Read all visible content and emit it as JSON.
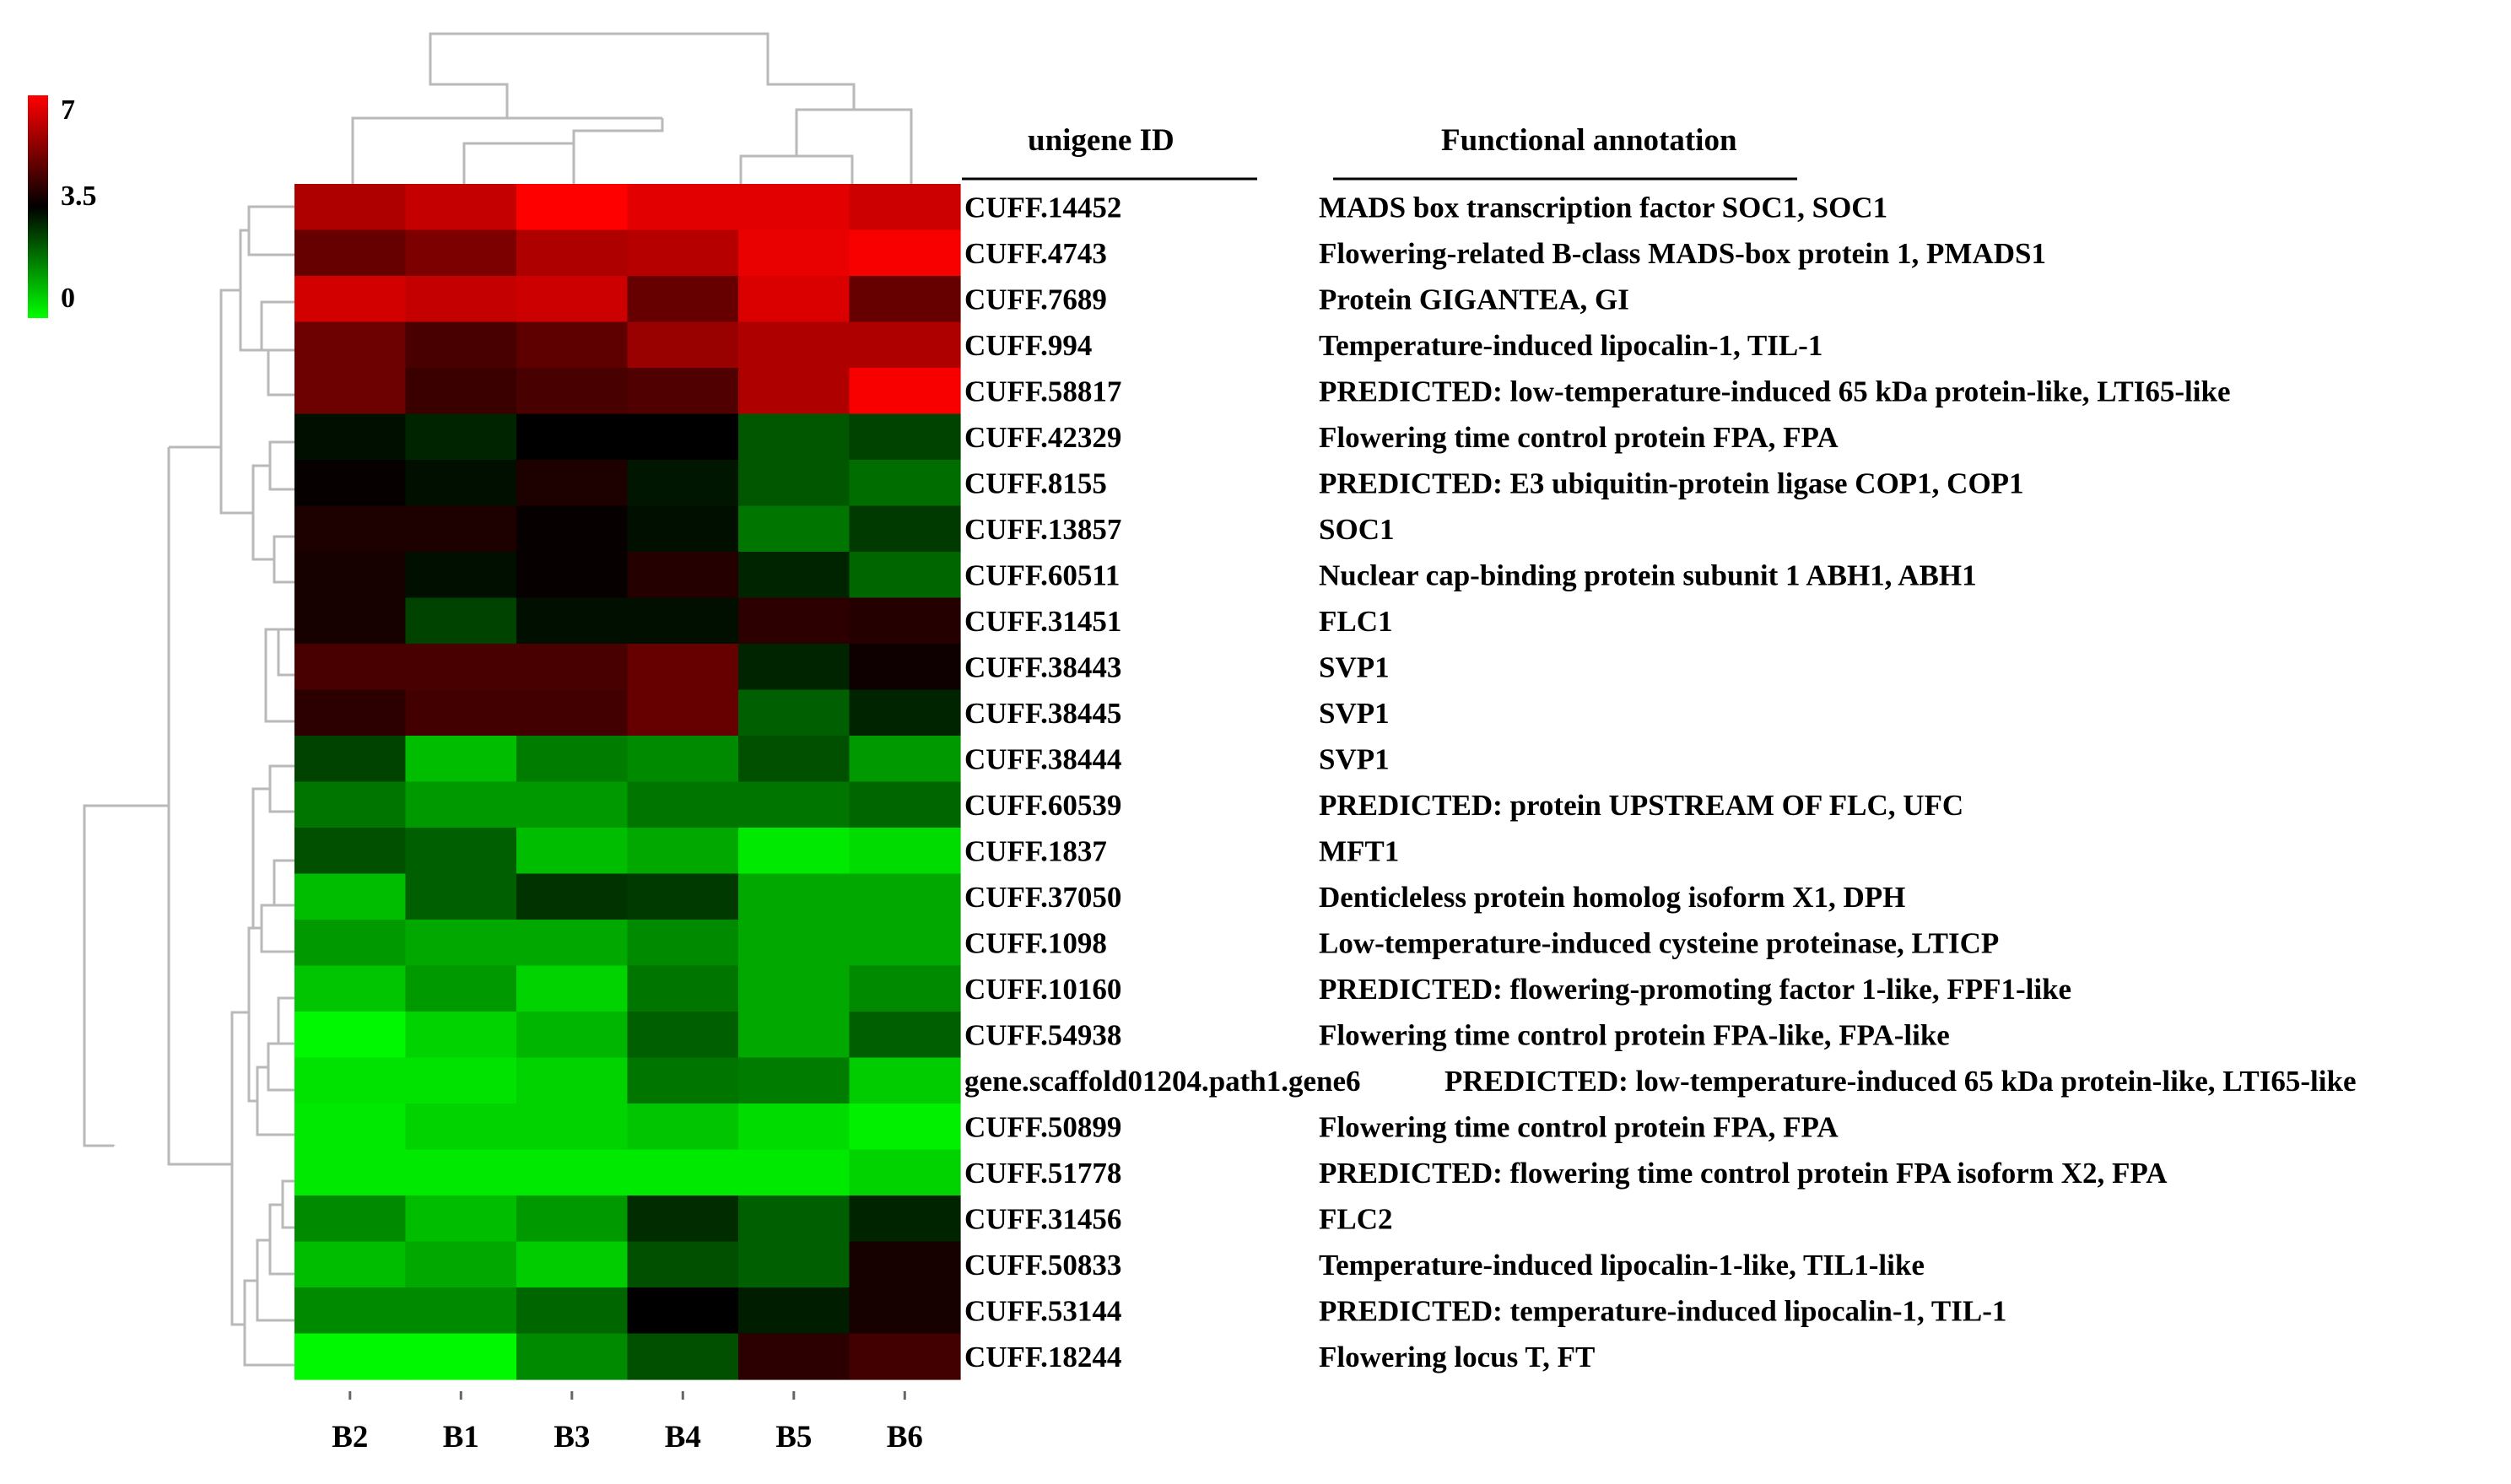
{
  "chart_data": {
    "type": "heatmap",
    "title": "",
    "header_gene_id": "unigene ID",
    "header_annotation": "Functional annotation",
    "columns": [
      "B2",
      "B1",
      "B3",
      "B4",
      "B5",
      "B6"
    ],
    "color_scale": {
      "min": 0,
      "mid": 3.5,
      "max": 7,
      "min_color": "#00ff00",
      "mid_color": "#000000",
      "max_color": "#ff0000",
      "tick_labels": [
        "7",
        "3.5",
        "0"
      ]
    },
    "rows": [
      {
        "id": "CUFF.14452",
        "annotation": "MADS box transcription factor SOC1, SOC1",
        "values": [
          5.9,
          6.2,
          7.0,
          6.6,
          6.6,
          6.3
        ]
      },
      {
        "id": "CUFF.4743",
        "annotation": "Flowering-related B-class MADS-box protein 1, PMADS1",
        "values": [
          4.9,
          5.2,
          5.9,
          6.0,
          6.7,
          6.9
        ]
      },
      {
        "id": "CUFF.7689",
        "annotation": "Protein GIGANTEA, GI",
        "values": [
          6.4,
          6.2,
          6.3,
          4.9,
          6.5,
          4.9
        ]
      },
      {
        "id": "CUFF.994",
        "annotation": "Temperature-induced lipocalin-1, TIL-1",
        "values": [
          5.0,
          4.5,
          4.8,
          5.6,
          5.9,
          5.9
        ]
      },
      {
        "id": "CUFF.58817",
        "annotation": "PREDICTED: low-temperature-induced 65 kDa protein-like, LTI65-like",
        "values": [
          5.0,
          4.3,
          4.5,
          4.6,
          5.9,
          6.9
        ]
      },
      {
        "id": "CUFF.42329",
        "annotation": "Flowering time control protein FPA, FPA",
        "values": [
          3.3,
          3.0,
          3.5,
          3.5,
          2.3,
          2.6
        ]
      },
      {
        "id": "CUFF.8155",
        "annotation": "PREDICTED: E3 ubiquitin-protein ligase COP1, COP1",
        "values": [
          3.6,
          3.3,
          3.9,
          3.2,
          2.3,
          2.0
        ]
      },
      {
        "id": "CUFF.13857",
        "annotation": "SOC1",
        "values": [
          3.9,
          3.9,
          3.6,
          3.3,
          1.9,
          2.7
        ]
      },
      {
        "id": "CUFF.60511",
        "annotation": "Nuclear cap-binding protein subunit 1 ABH1, ABH1",
        "values": [
          3.8,
          3.3,
          3.6,
          4.0,
          3.0,
          2.1
        ]
      },
      {
        "id": "CUFF.31451",
        "annotation": "FLC1",
        "values": [
          3.8,
          2.6,
          3.3,
          3.3,
          4.1,
          4.0
        ]
      },
      {
        "id": "CUFF.38443",
        "annotation": "SVP1",
        "values": [
          4.5,
          4.5,
          4.5,
          4.9,
          3.0,
          3.7
        ]
      },
      {
        "id": "CUFF.38445",
        "annotation": "SVP1",
        "values": [
          4.1,
          4.4,
          4.4,
          4.9,
          2.2,
          3.0
        ]
      },
      {
        "id": "CUFF.38444",
        "annotation": "SVP1",
        "values": [
          2.6,
          0.9,
          1.8,
          1.6,
          2.4,
          1.4
        ]
      },
      {
        "id": "CUFF.60539",
        "annotation": "PREDICTED: protein UPSTREAM OF FLC, UFC",
        "values": [
          1.9,
          1.4,
          1.4,
          1.9,
          1.9,
          2.1
        ]
      },
      {
        "id": "CUFF.1837",
        "annotation": "MFT1",
        "values": [
          2.4,
          2.2,
          0.9,
          1.2,
          0.3,
          0.5
        ]
      },
      {
        "id": "CUFF.37050",
        "annotation": "Denticleless protein homolog isoform X1, DPH",
        "values": [
          0.9,
          2.2,
          2.8,
          2.7,
          1.2,
          1.2
        ]
      },
      {
        "id": "CUFF.1098",
        "annotation": "Low-temperature-induced cysteine proteinase, LTICP",
        "values": [
          1.4,
          1.2,
          1.2,
          1.6,
          1.2,
          1.2
        ]
      },
      {
        "id": "CUFF.10160",
        "annotation": "PREDICTED: flowering-promoting factor 1-like, FPF1-like",
        "values": [
          0.8,
          1.4,
          0.6,
          1.9,
          1.2,
          1.6
        ]
      },
      {
        "id": "CUFF.54938",
        "annotation": "Flowering time control protein FPA-like, FPA-like",
        "values": [
          0.1,
          0.6,
          1.0,
          2.2,
          1.2,
          2.2
        ]
      },
      {
        "id": "gene.scaffold01204.path1.gene6",
        "annotation": "PREDICTED: low-temperature-induced 65 kDa protein-like, LTI65-like",
        "values": [
          0.4,
          0.4,
          0.6,
          1.9,
          1.8,
          0.7
        ]
      },
      {
        "id": "CUFF.50899",
        "annotation": "Flowering time control protein FPA, FPA",
        "values": [
          0.3,
          0.6,
          0.6,
          0.8,
          0.5,
          0.2
        ]
      },
      {
        "id": "CUFF.51778",
        "annotation": "PREDICTED: flowering time control protein FPA isoform X2, FPA",
        "values": [
          0.3,
          0.3,
          0.3,
          0.3,
          0.3,
          0.6
        ]
      },
      {
        "id": "CUFF.31456",
        "annotation": "FLC2",
        "values": [
          1.6,
          0.9,
          1.4,
          2.9,
          2.2,
          3.0
        ]
      },
      {
        "id": "CUFF.50833",
        "annotation": "Temperature-induced lipocalin-1-like, TIL1-like",
        "values": [
          0.9,
          1.2,
          0.7,
          2.4,
          2.2,
          3.8
        ]
      },
      {
        "id": "CUFF.53144",
        "annotation": "PREDICTED: temperature-induced lipocalin-1, TIL-1",
        "values": [
          1.6,
          1.6,
          2.1,
          3.5,
          3.1,
          3.8
        ]
      },
      {
        "id": "CUFF.18244",
        "annotation": "Flowering locus T, FT",
        "values": [
          0.1,
          0.1,
          1.6,
          2.4,
          4.1,
          4.4
        ]
      }
    ]
  }
}
